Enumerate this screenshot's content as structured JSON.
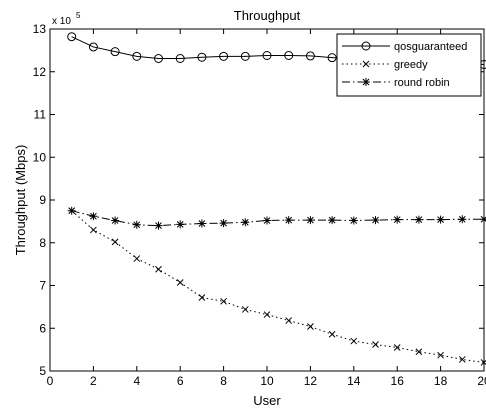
{
  "chart_data": {
    "type": "line",
    "title": "Throughput",
    "xlabel": "User",
    "ylabel": "Throughput (Mbps)",
    "y_multiplier_base": "x 10",
    "y_multiplier_exponent": "5",
    "xlim": [
      0,
      20
    ],
    "ylim": [
      5,
      13
    ],
    "x_ticks": [
      0,
      2,
      4,
      6,
      8,
      10,
      12,
      14,
      16,
      18,
      20
    ],
    "y_ticks": [
      5,
      6,
      7,
      8,
      9,
      10,
      11,
      12,
      13
    ],
    "x_tick_labels": [
      "0",
      "2",
      "4",
      "6",
      "8",
      "10",
      "12",
      "14",
      "16",
      "18",
      "20"
    ],
    "y_tick_labels": [
      "5",
      "6",
      "7",
      "8",
      "9",
      "10",
      "11",
      "12",
      "13"
    ],
    "grid": false,
    "legend_position": "top-right",
    "x": [
      1,
      2,
      3,
      4,
      5,
      6,
      7,
      8,
      9,
      10,
      11,
      12,
      13,
      14,
      15,
      16,
      17,
      18,
      19,
      20
    ],
    "series": [
      {
        "name": "qosguaranteed",
        "marker": "o",
        "linestyle": "solid",
        "color": "#000000",
        "values": [
          12.82,
          12.58,
          12.47,
          12.36,
          12.31,
          12.31,
          12.34,
          12.36,
          12.36,
          12.38,
          12.38,
          12.37,
          12.33,
          12.3,
          12.28,
          12.27,
          12.25,
          12.22,
          12.2,
          12.17
        ]
      },
      {
        "name": "greedy",
        "marker": "x",
        "linestyle": "dotted",
        "color": "#000000",
        "values": [
          8.75,
          8.3,
          8.02,
          7.63,
          7.38,
          7.07,
          6.72,
          6.63,
          6.44,
          6.32,
          6.18,
          6.04,
          5.86,
          5.7,
          5.62,
          5.55,
          5.45,
          5.37,
          5.27,
          5.2
        ]
      },
      {
        "name": "round robin",
        "marker": "*",
        "linestyle": "dashdot",
        "color": "#000000",
        "values": [
          8.75,
          8.62,
          8.52,
          8.42,
          8.4,
          8.43,
          8.45,
          8.46,
          8.48,
          8.52,
          8.53,
          8.53,
          8.53,
          8.52,
          8.53,
          8.54,
          8.54,
          8.54,
          8.55,
          8.55
        ]
      }
    ]
  }
}
